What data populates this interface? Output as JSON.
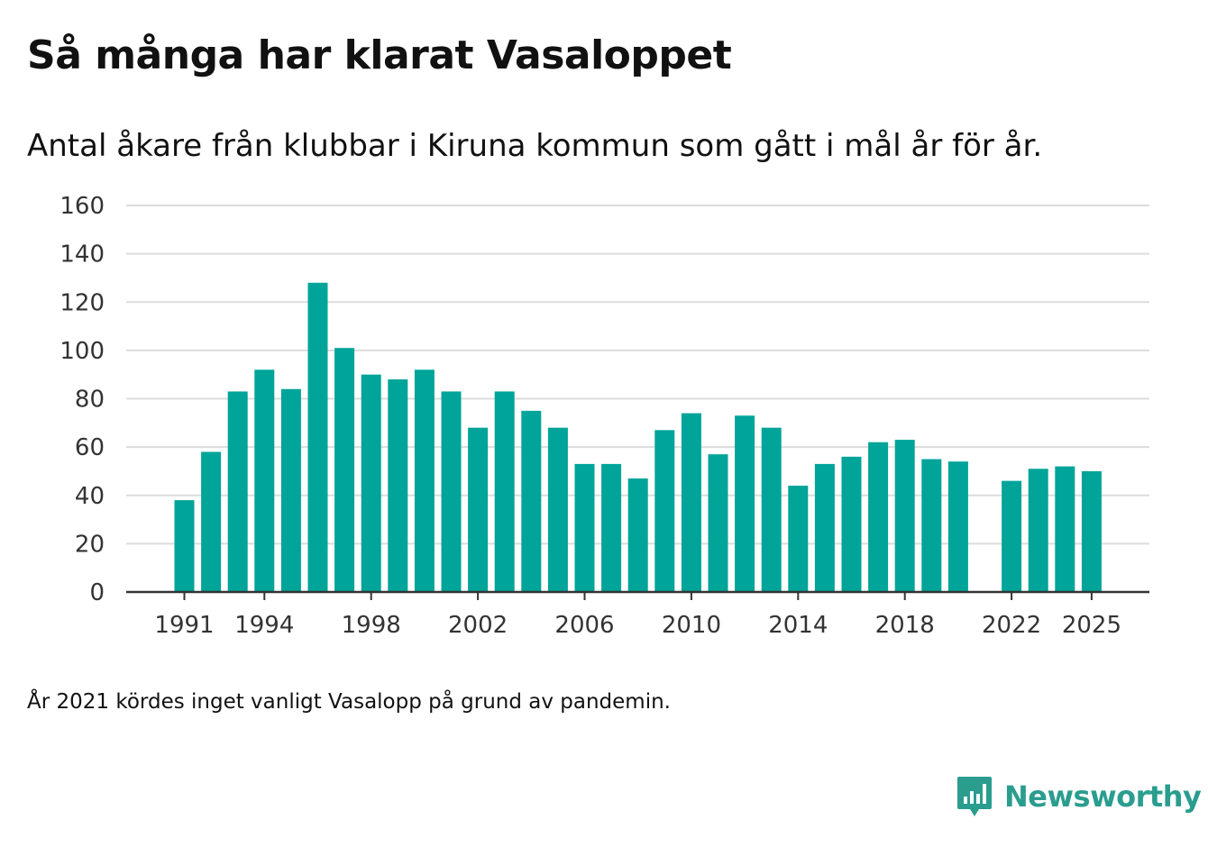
{
  "chart_data": {
    "type": "bar",
    "title": "Så många har klarat Vasaloppet",
    "subtitle": "Antal åkare från klubbar i Kiruna kommun som gått i mål år för år.",
    "xlabel": "",
    "ylabel": "",
    "ylim": [
      0,
      160
    ],
    "yticks": [
      0,
      20,
      40,
      60,
      80,
      100,
      120,
      140,
      160
    ],
    "xticks": [
      "1991",
      "1994",
      "1998",
      "2002",
      "2006",
      "2010",
      "2014",
      "2018",
      "2022",
      "2025"
    ],
    "categories": [
      "1991",
      "1992",
      "1993",
      "1994",
      "1995",
      "1996",
      "1997",
      "1998",
      "1999",
      "2000",
      "2001",
      "2002",
      "2003",
      "2004",
      "2005",
      "2006",
      "2007",
      "2008",
      "2009",
      "2010",
      "2011",
      "2012",
      "2013",
      "2014",
      "2015",
      "2016",
      "2017",
      "2018",
      "2019",
      "2020",
      "2021",
      "2022",
      "2023",
      "2024",
      "2025"
    ],
    "values": [
      38,
      58,
      83,
      92,
      84,
      128,
      101,
      90,
      88,
      92,
      83,
      68,
      83,
      75,
      68,
      53,
      53,
      47,
      67,
      74,
      57,
      73,
      68,
      44,
      53,
      56,
      62,
      63,
      55,
      54,
      null,
      46,
      51,
      52,
      50
    ],
    "color": "#00a499",
    "grid": true,
    "note": "År 2021 kördes inget vanligt Vasalopp på grund av pandemin."
  },
  "brand": {
    "name": "Newsworthy",
    "icon": "newsworthy-logo-icon",
    "color": "#2a9d8f"
  }
}
